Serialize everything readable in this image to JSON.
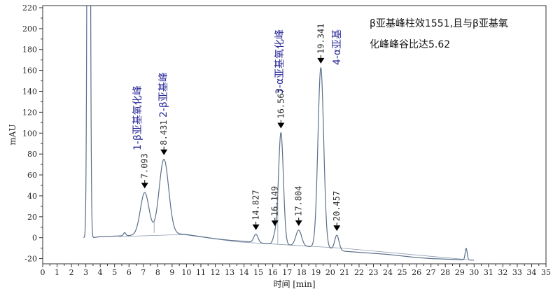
{
  "chart_data": {
    "type": "line",
    "ylabel": "mAU",
    "xlabel": "时间 [min]",
    "xlim": [
      0,
      35
    ],
    "ylim": [
      -25,
      222
    ],
    "xticks": [
      "0",
      "1",
      "2",
      "3",
      "4",
      "5",
      "6",
      "7",
      "8",
      "9",
      "10",
      "11",
      "12",
      "13",
      "14",
      "15",
      "16",
      "17",
      "18",
      "19",
      "20",
      "21",
      "22",
      "23",
      "24",
      "25",
      "26",
      "27",
      "28",
      "29",
      "30",
      "31",
      "32",
      "33",
      "34",
      "35"
    ],
    "yticks": [
      "-20",
      "0",
      "20",
      "40",
      "60",
      "80",
      "100",
      "120",
      "140",
      "160",
      "180",
      "200",
      "220"
    ],
    "grid": false,
    "baseline_points": [
      [
        3.5,
        0
      ],
      [
        4.0,
        1
      ],
      [
        5.0,
        1.5
      ],
      [
        6.0,
        2
      ],
      [
        7.0,
        3
      ],
      [
        8.0,
        4
      ],
      [
        9.0,
        4
      ],
      [
        10.0,
        3
      ],
      [
        11.0,
        1
      ],
      [
        12.0,
        -1
      ],
      [
        13.0,
        -2.5
      ],
      [
        14.0,
        -3.5
      ],
      [
        15.0,
        -5
      ],
      [
        16.0,
        -6
      ],
      [
        17.0,
        -7
      ],
      [
        18.0,
        -8
      ],
      [
        19.0,
        -9
      ],
      [
        20.0,
        -10.5
      ],
      [
        21.0,
        -13
      ],
      [
        22.0,
        -14
      ],
      [
        23.0,
        -15
      ],
      [
        24.0,
        -16
      ],
      [
        25.0,
        -17.5
      ],
      [
        26.0,
        -19
      ],
      [
        27.0,
        -20
      ],
      [
        28.0,
        -20.5
      ],
      [
        29.0,
        -21
      ],
      [
        30.0,
        -21.5
      ]
    ],
    "peaks": [
      {
        "rt": 3.2,
        "height": 1000,
        "width": 0.08,
        "label": ""
      },
      {
        "rt": 5.7,
        "height": 3,
        "width": 0.08,
        "label": ""
      },
      {
        "rt": 7.093,
        "height": 40,
        "width": 0.3,
        "label": "7.093"
      },
      {
        "rt": 8.431,
        "height": 71,
        "width": 0.33,
        "label": "8.431"
      },
      {
        "rt": 14.827,
        "height": 8,
        "width": 0.15,
        "label": "14.827"
      },
      {
        "rt": 16.149,
        "height": 8,
        "width": 0.13,
        "label": "16.149"
      },
      {
        "rt": 16.567,
        "height": 107,
        "width": 0.17,
        "label": "16.567"
      },
      {
        "rt": 17.804,
        "height": 15,
        "width": 0.2,
        "label": "17.804"
      },
      {
        "rt": 19.341,
        "height": 172,
        "width": 0.2,
        "label": "19.341"
      },
      {
        "rt": 20.457,
        "height": 14,
        "width": 0.15,
        "label": "20.457"
      },
      {
        "rt": 29.45,
        "height": 11,
        "width": 0.07,
        "label": ""
      }
    ],
    "annotations": [
      {
        "text": "1-β亚基氧化峰",
        "x": 7.093
      },
      {
        "text": "2-β亚基峰",
        "x": 8.431
      },
      {
        "text": "3-α亚基氧化峰",
        "x": 16.567
      },
      {
        "text": "4-α亚基",
        "x": 19.341
      }
    ],
    "note_lines": [
      "β亚基峰柱效1551,且与β亚基氧",
      "化峰峰谷比达5.62"
    ],
    "colors": {
      "trace": "#5a6f8a",
      "text_annotation": "#2b2b9a",
      "marker": "#000000"
    }
  }
}
